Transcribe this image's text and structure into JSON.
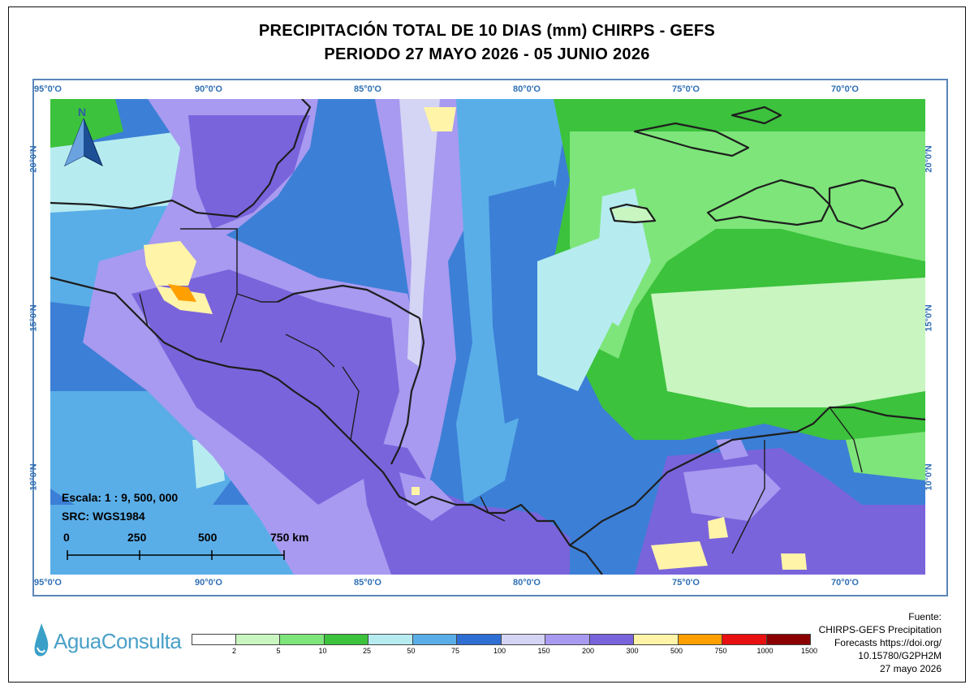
{
  "title": {
    "line1": "PRECIPITACIÓN TOTAL DE 10 DIAS (mm) CHIRPS - GEFS",
    "line2": "PERIODO 27 MAYO 2026 - 05 JUNIO 2026"
  },
  "graticule": {
    "lon_labels": [
      "95°0'O",
      "90°0'O",
      "85°0'O",
      "80°0'O",
      "75°0'O",
      "70°0'O"
    ],
    "lat_labels": [
      "20°0'N",
      "15°0'N",
      "10°0'N"
    ]
  },
  "north_arrow": {
    "label": "N"
  },
  "scale": {
    "text": "Escala: 1 : 9, 500, 000",
    "src": "SRC: WGS1984",
    "marks": [
      "0",
      "250",
      "500",
      "750 km"
    ]
  },
  "legend": {
    "colors": [
      "#ffffff",
      "#c8f5c0",
      "#7ee57a",
      "#3cc23c",
      "#b6ecf0",
      "#5aaee8",
      "#2f6fd4",
      "#d4d4f4",
      "#a79af0",
      "#7a64dc",
      "#fff4a8",
      "#ffa000",
      "#e81010",
      "#8a0000"
    ],
    "ticks": [
      "2",
      "5",
      "10",
      "25",
      "50",
      "75",
      "100",
      "150",
      "200",
      "300",
      "500",
      "750",
      "1000",
      "1500"
    ]
  },
  "source": {
    "lines": [
      "Fuente:",
      "CHIRPS-GEFS Precipitation",
      "Forecasts https://doi.org/",
      "10.15780/G2PH2M",
      "27 mayo 2026"
    ]
  },
  "logo": {
    "text": "AguaConsulta"
  }
}
